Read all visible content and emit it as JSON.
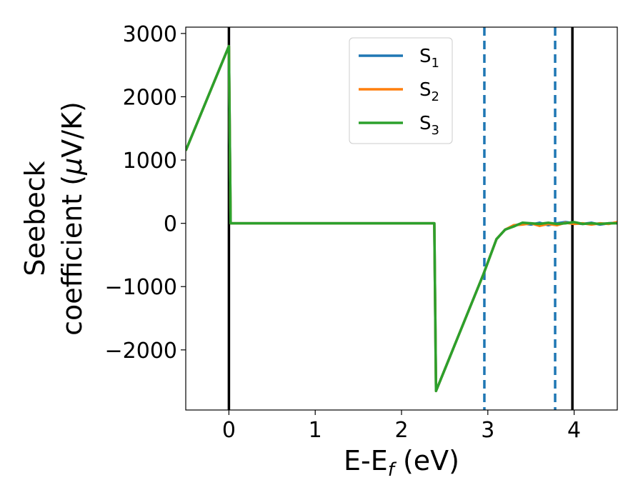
{
  "chart_data": {
    "type": "line",
    "xlabel": {
      "main": "E-E",
      "sub": "f",
      "unit": " (eV)"
    },
    "ylabel": {
      "line1": "Seebeck",
      "line2": "coefficient  (",
      "mu": "μ",
      "line2_end": "V/K)"
    },
    "xlim": [
      -0.5,
      4.5
    ],
    "ylim": [
      -2950,
      3100
    ],
    "xticks": [
      {
        "value": 0,
        "label": "0"
      },
      {
        "value": 1,
        "label": "1"
      },
      {
        "value": 2,
        "label": "2"
      },
      {
        "value": 3,
        "label": "3"
      },
      {
        "value": 4,
        "label": "4"
      }
    ],
    "yticks": [
      {
        "value": 3000,
        "label": "3000"
      },
      {
        "value": 2000,
        "label": "2000"
      },
      {
        "value": 1000,
        "label": "1000"
      },
      {
        "value": 0,
        "label": "0"
      },
      {
        "value": -1000,
        "label": "−1000"
      },
      {
        "value": -2000,
        "label": "−2000"
      }
    ],
    "legend_position": "top-center",
    "grid": false,
    "series": [
      {
        "name": "S",
        "sub": "1",
        "color": "#1f77b4",
        "x": [
          -0.5,
          0.0,
          0.02,
          2.38,
          2.4,
          2.95,
          3.1,
          3.2,
          3.3,
          3.4,
          3.5,
          3.6,
          3.7,
          3.8,
          3.9,
          4.0,
          4.1,
          4.2,
          4.3,
          4.4,
          4.5
        ],
        "y": [
          1150,
          2800,
          0,
          0,
          -2650,
          -800,
          -250,
          -100,
          -40,
          0,
          -20,
          10,
          -30,
          0,
          20,
          0,
          -10,
          10,
          -20,
          0,
          10
        ]
      },
      {
        "name": "S",
        "sub": "2",
        "color": "#ff7f0e",
        "x": [
          -0.5,
          0.0,
          0.02,
          2.38,
          2.4,
          2.95,
          3.1,
          3.2,
          3.3,
          3.4,
          3.5,
          3.6,
          3.7,
          3.8,
          3.9,
          4.0,
          4.1,
          4.2,
          4.3,
          4.4,
          4.5
        ],
        "y": [
          1150,
          2800,
          0,
          0,
          -2650,
          -800,
          -250,
          -100,
          -30,
          -20,
          0,
          -40,
          -10,
          -30,
          10,
          -10,
          0,
          -20,
          0,
          -10,
          20
        ]
      },
      {
        "name": "S",
        "sub": "3",
        "color": "#2ca02c",
        "x": [
          -0.5,
          0.0,
          0.02,
          2.38,
          2.4,
          2.95,
          3.1,
          3.2,
          3.3,
          3.4,
          3.5,
          3.6,
          3.7,
          3.8,
          3.9,
          4.0,
          4.1,
          4.2,
          4.3,
          4.4,
          4.5
        ],
        "y": [
          1150,
          2800,
          0,
          0,
          -2650,
          -800,
          -250,
          -100,
          -50,
          10,
          0,
          -10,
          10,
          -10,
          0,
          20,
          -10,
          0,
          -10,
          0,
          0
        ]
      }
    ],
    "vlines_solid": {
      "color": "#000000",
      "x": [
        0.0,
        3.98
      ]
    },
    "vlines_dashed": {
      "color": "#1f77b4",
      "x": [
        2.96,
        3.78
      ]
    }
  }
}
